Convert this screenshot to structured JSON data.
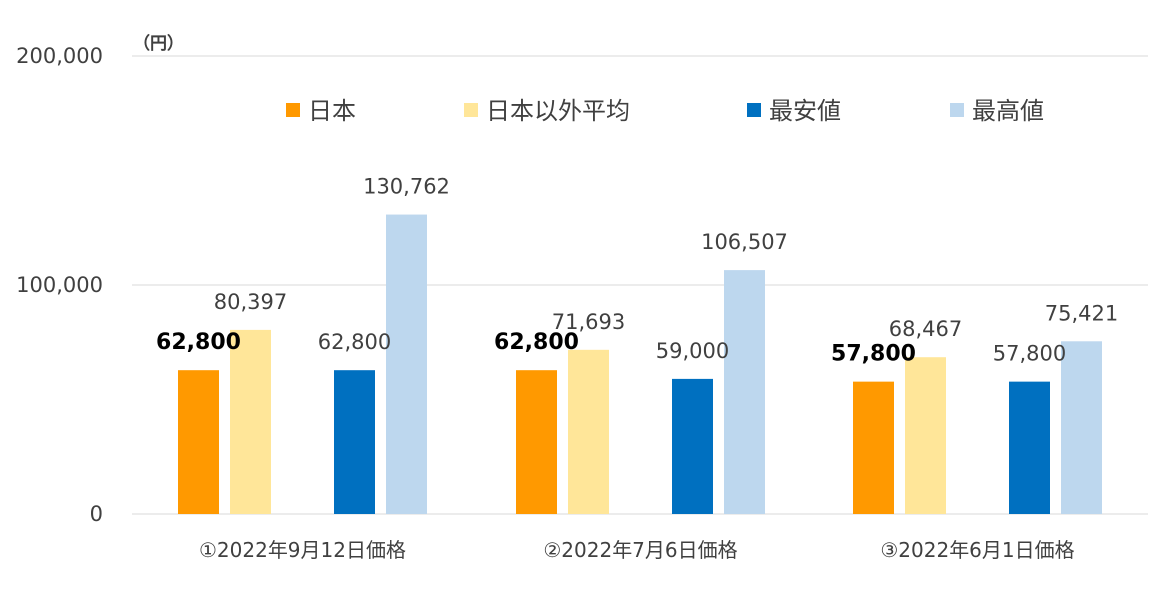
{
  "chart_data": {
    "type": "bar",
    "unit": "（円）",
    "ylim": [
      0,
      200000
    ],
    "yticks": [
      "0",
      "100,000",
      "200,000"
    ],
    "ytick_values": [
      0,
      100000,
      200000
    ],
    "grid": true,
    "legend_position": "top",
    "categories": [
      "①2022年9月12日価格",
      "②2022年7月6日価格",
      "③2022年6月1日価格"
    ],
    "series": [
      {
        "name": "日本",
        "color": "#ff9900",
        "values": [
          62800,
          62800,
          57800
        ],
        "labels": [
          "62,800",
          "62,800",
          "57,800"
        ],
        "bold_labels": true
      },
      {
        "name": "日本以外平均",
        "color": "#ffe699",
        "values": [
          80397,
          71693,
          68467
        ],
        "labels": [
          "80,397",
          "71,693",
          "68,467"
        ],
        "bold_labels": false
      },
      {
        "name": "最安値",
        "color": "#0070c0",
        "values": [
          62800,
          59000,
          57800
        ],
        "labels": [
          "62,800",
          "59,000",
          "57,800"
        ],
        "bold_labels": false
      },
      {
        "name": "最高値",
        "color": "#bdd7ee",
        "values": [
          130762,
          106507,
          75421
        ],
        "labels": [
          "130,762",
          "106,507",
          "75,421"
        ],
        "bold_labels": false
      }
    ]
  }
}
